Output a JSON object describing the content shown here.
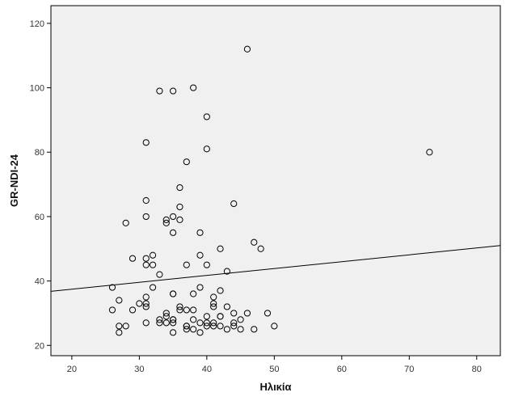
{
  "chart_data": {
    "type": "scatter",
    "title": "",
    "xlabel": "Ηλικία",
    "ylabel": "GR-NDI-24",
    "xlim": [
      16.9,
      83.5
    ],
    "ylim": [
      16.8,
      125.5
    ],
    "xticks": [
      20,
      30,
      40,
      50,
      60,
      70,
      80
    ],
    "yticks": [
      20,
      40,
      60,
      80,
      100,
      120
    ],
    "grid": false,
    "plot_background": "#f0f0f0",
    "marker": "open-circle",
    "fit_line": {
      "type": "linear",
      "x": [
        16.9,
        83.5
      ],
      "y": [
        36.8,
        51.0
      ]
    },
    "points": [
      {
        "x": 46,
        "y": 112
      },
      {
        "x": 33,
        "y": 99
      },
      {
        "x": 35,
        "y": 99
      },
      {
        "x": 38,
        "y": 100
      },
      {
        "x": 40,
        "y": 91
      },
      {
        "x": 31,
        "y": 83
      },
      {
        "x": 40,
        "y": 81
      },
      {
        "x": 37,
        "y": 77
      },
      {
        "x": 73,
        "y": 80
      },
      {
        "x": 36,
        "y": 69
      },
      {
        "x": 31,
        "y": 65
      },
      {
        "x": 44,
        "y": 64
      },
      {
        "x": 36,
        "y": 63
      },
      {
        "x": 31,
        "y": 60
      },
      {
        "x": 35,
        "y": 60
      },
      {
        "x": 34,
        "y": 59
      },
      {
        "x": 36,
        "y": 59
      },
      {
        "x": 28,
        "y": 58
      },
      {
        "x": 34,
        "y": 58
      },
      {
        "x": 35,
        "y": 55
      },
      {
        "x": 39,
        "y": 55
      },
      {
        "x": 47,
        "y": 52
      },
      {
        "x": 42,
        "y": 50
      },
      {
        "x": 48,
        "y": 50
      },
      {
        "x": 32,
        "y": 48
      },
      {
        "x": 39,
        "y": 48
      },
      {
        "x": 29,
        "y": 47
      },
      {
        "x": 31,
        "y": 47
      },
      {
        "x": 31,
        "y": 45
      },
      {
        "x": 32,
        "y": 45
      },
      {
        "x": 37,
        "y": 45
      },
      {
        "x": 40,
        "y": 45
      },
      {
        "x": 43,
        "y": 43
      },
      {
        "x": 33,
        "y": 42
      },
      {
        "x": 26,
        "y": 38
      },
      {
        "x": 32,
        "y": 38
      },
      {
        "x": 39,
        "y": 38
      },
      {
        "x": 42,
        "y": 37
      },
      {
        "x": 35,
        "y": 36
      },
      {
        "x": 35,
        "y": 36
      },
      {
        "x": 38,
        "y": 36
      },
      {
        "x": 31,
        "y": 35
      },
      {
        "x": 41,
        "y": 35
      },
      {
        "x": 27,
        "y": 34
      },
      {
        "x": 30,
        "y": 33
      },
      {
        "x": 31,
        "y": 33
      },
      {
        "x": 41,
        "y": 33
      },
      {
        "x": 31,
        "y": 32
      },
      {
        "x": 36,
        "y": 32
      },
      {
        "x": 41,
        "y": 32
      },
      {
        "x": 43,
        "y": 32
      },
      {
        "x": 26,
        "y": 31
      },
      {
        "x": 29,
        "y": 31
      },
      {
        "x": 36,
        "y": 31
      },
      {
        "x": 37,
        "y": 31
      },
      {
        "x": 38,
        "y": 31
      },
      {
        "x": 34,
        "y": 30
      },
      {
        "x": 44,
        "y": 30
      },
      {
        "x": 46,
        "y": 30
      },
      {
        "x": 49,
        "y": 30
      },
      {
        "x": 34,
        "y": 29
      },
      {
        "x": 40,
        "y": 29
      },
      {
        "x": 42,
        "y": 29
      },
      {
        "x": 42,
        "y": 29
      },
      {
        "x": 33,
        "y": 28
      },
      {
        "x": 35,
        "y": 28
      },
      {
        "x": 38,
        "y": 28
      },
      {
        "x": 45,
        "y": 28
      },
      {
        "x": 35,
        "y": 28
      },
      {
        "x": 31,
        "y": 27
      },
      {
        "x": 33,
        "y": 27
      },
      {
        "x": 34,
        "y": 27
      },
      {
        "x": 35,
        "y": 27
      },
      {
        "x": 39,
        "y": 27
      },
      {
        "x": 40,
        "y": 27
      },
      {
        "x": 41,
        "y": 27
      },
      {
        "x": 44,
        "y": 27
      },
      {
        "x": 27,
        "y": 26
      },
      {
        "x": 28,
        "y": 26
      },
      {
        "x": 37,
        "y": 26
      },
      {
        "x": 37,
        "y": 26
      },
      {
        "x": 40,
        "y": 26
      },
      {
        "x": 41,
        "y": 26
      },
      {
        "x": 42,
        "y": 26
      },
      {
        "x": 44,
        "y": 26
      },
      {
        "x": 50,
        "y": 26
      },
      {
        "x": 37,
        "y": 25
      },
      {
        "x": 38,
        "y": 25
      },
      {
        "x": 43,
        "y": 25
      },
      {
        "x": 45,
        "y": 25
      },
      {
        "x": 47,
        "y": 25
      },
      {
        "x": 27,
        "y": 24
      },
      {
        "x": 35,
        "y": 24
      },
      {
        "x": 39,
        "y": 24
      }
    ]
  }
}
